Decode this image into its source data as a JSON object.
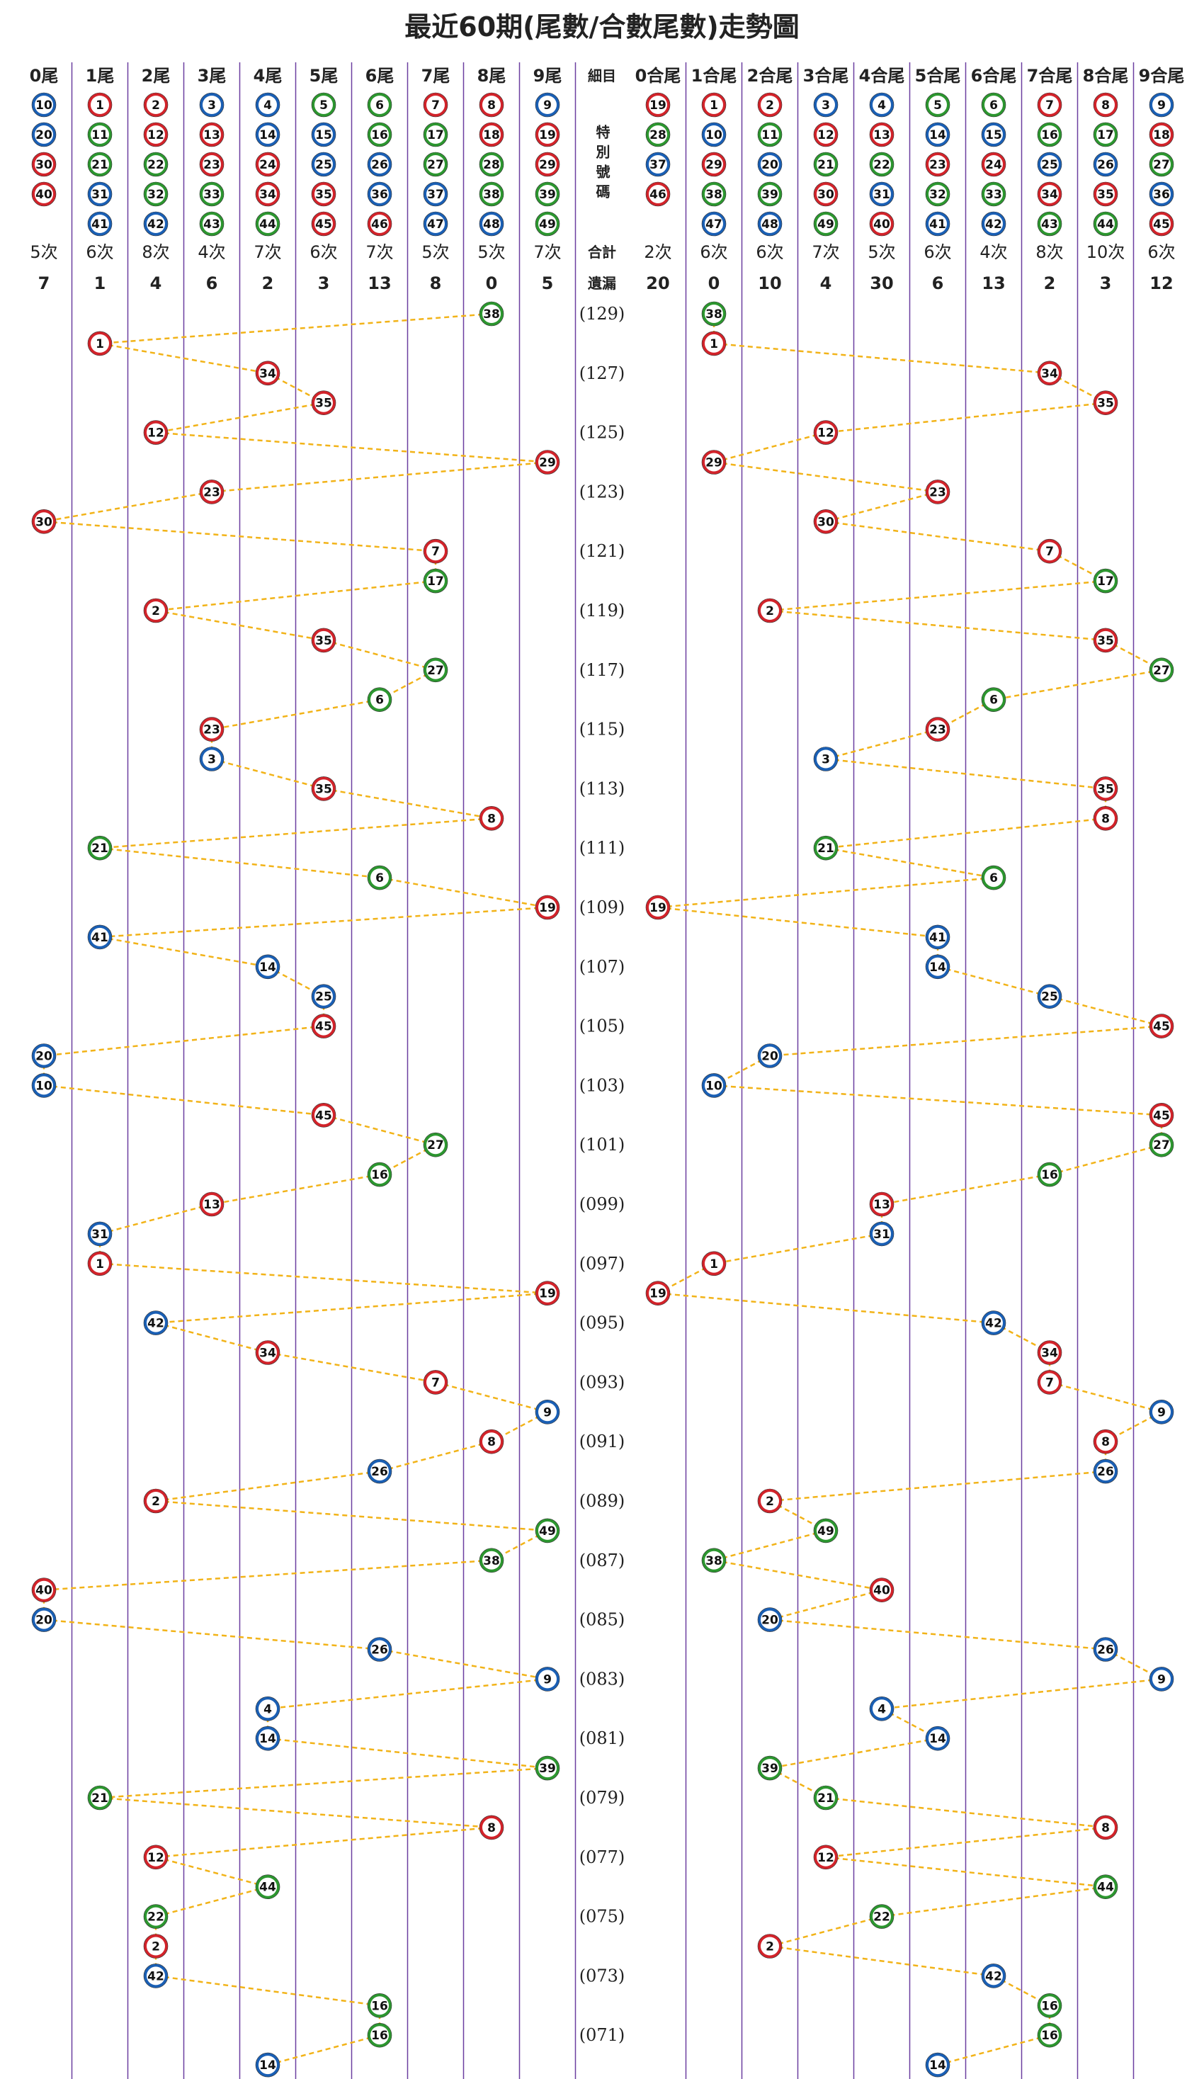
{
  "title": "最近60期(尾數/合數尾數)走勢圖",
  "middle": {
    "header": "細目",
    "special": "特別號碼",
    "total": "合計",
    "miss": "遺漏"
  },
  "colors": {
    "red": "#d2232a",
    "blue": "#1a5fb4",
    "green": "#2c962f",
    "line": "#f2b318",
    "divider": "#6b3fa0"
  },
  "tail_columns": [
    {
      "label": "0尾",
      "numbers": [
        {
          "n": "10",
          "color": "blue"
        },
        {
          "n": "20",
          "color": "blue"
        },
        {
          "n": "30",
          "color": "red"
        },
        {
          "n": "40",
          "color": "red"
        }
      ],
      "count": "5次",
      "miss": "7"
    },
    {
      "label": "1尾",
      "numbers": [
        {
          "n": "1",
          "color": "red"
        },
        {
          "n": "11",
          "color": "green"
        },
        {
          "n": "21",
          "color": "green"
        },
        {
          "n": "31",
          "color": "blue"
        },
        {
          "n": "41",
          "color": "blue"
        }
      ],
      "count": "6次",
      "miss": "1"
    },
    {
      "label": "2尾",
      "numbers": [
        {
          "n": "2",
          "color": "red"
        },
        {
          "n": "12",
          "color": "red"
        },
        {
          "n": "22",
          "color": "green"
        },
        {
          "n": "32",
          "color": "green"
        },
        {
          "n": "42",
          "color": "blue"
        }
      ],
      "count": "8次",
      "miss": "4"
    },
    {
      "label": "3尾",
      "numbers": [
        {
          "n": "3",
          "color": "blue"
        },
        {
          "n": "13",
          "color": "red"
        },
        {
          "n": "23",
          "color": "red"
        },
        {
          "n": "33",
          "color": "green"
        },
        {
          "n": "43",
          "color": "green"
        }
      ],
      "count": "4次",
      "miss": "6"
    },
    {
      "label": "4尾",
      "numbers": [
        {
          "n": "4",
          "color": "blue"
        },
        {
          "n": "14",
          "color": "blue"
        },
        {
          "n": "24",
          "color": "red"
        },
        {
          "n": "34",
          "color": "red"
        },
        {
          "n": "44",
          "color": "green"
        }
      ],
      "count": "7次",
      "miss": "2"
    },
    {
      "label": "5尾",
      "numbers": [
        {
          "n": "5",
          "color": "green"
        },
        {
          "n": "15",
          "color": "blue"
        },
        {
          "n": "25",
          "color": "blue"
        },
        {
          "n": "35",
          "color": "red"
        },
        {
          "n": "45",
          "color": "red"
        }
      ],
      "count": "6次",
      "miss": "3"
    },
    {
      "label": "6尾",
      "numbers": [
        {
          "n": "6",
          "color": "green"
        },
        {
          "n": "16",
          "color": "green"
        },
        {
          "n": "26",
          "color": "blue"
        },
        {
          "n": "36",
          "color": "blue"
        },
        {
          "n": "46",
          "color": "red"
        }
      ],
      "count": "7次",
      "miss": "13"
    },
    {
      "label": "7尾",
      "numbers": [
        {
          "n": "7",
          "color": "red"
        },
        {
          "n": "17",
          "color": "green"
        },
        {
          "n": "27",
          "color": "green"
        },
        {
          "n": "37",
          "color": "blue"
        },
        {
          "n": "47",
          "color": "blue"
        }
      ],
      "count": "5次",
      "miss": "8"
    },
    {
      "label": "8尾",
      "numbers": [
        {
          "n": "8",
          "color": "red"
        },
        {
          "n": "18",
          "color": "red"
        },
        {
          "n": "28",
          "color": "green"
        },
        {
          "n": "38",
          "color": "green"
        },
        {
          "n": "48",
          "color": "blue"
        }
      ],
      "count": "5次",
      "miss": "0"
    },
    {
      "label": "9尾",
      "numbers": [
        {
          "n": "9",
          "color": "blue"
        },
        {
          "n": "19",
          "color": "red"
        },
        {
          "n": "29",
          "color": "red"
        },
        {
          "n": "39",
          "color": "green"
        },
        {
          "n": "49",
          "color": "green"
        }
      ],
      "count": "7次",
      "miss": "5"
    }
  ],
  "sum_tail_columns": [
    {
      "label": "0合尾",
      "numbers": [
        {
          "n": "19",
          "color": "red"
        },
        {
          "n": "28",
          "color": "green"
        },
        {
          "n": "37",
          "color": "blue"
        },
        {
          "n": "46",
          "color": "red"
        }
      ],
      "count": "2次",
      "miss": "20"
    },
    {
      "label": "1合尾",
      "numbers": [
        {
          "n": "1",
          "color": "red"
        },
        {
          "n": "10",
          "color": "blue"
        },
        {
          "n": "29",
          "color": "red"
        },
        {
          "n": "38",
          "color": "green"
        },
        {
          "n": "47",
          "color": "blue"
        }
      ],
      "count": "6次",
      "miss": "0"
    },
    {
      "label": "2合尾",
      "numbers": [
        {
          "n": "2",
          "color": "red"
        },
        {
          "n": "11",
          "color": "green"
        },
        {
          "n": "20",
          "color": "blue"
        },
        {
          "n": "39",
          "color": "green"
        },
        {
          "n": "48",
          "color": "blue"
        }
      ],
      "count": "6次",
      "miss": "10"
    },
    {
      "label": "3合尾",
      "numbers": [
        {
          "n": "3",
          "color": "blue"
        },
        {
          "n": "12",
          "color": "red"
        },
        {
          "n": "21",
          "color": "green"
        },
        {
          "n": "30",
          "color": "red"
        },
        {
          "n": "49",
          "color": "green"
        }
      ],
      "count": "7次",
      "miss": "4"
    },
    {
      "label": "4合尾",
      "numbers": [
        {
          "n": "4",
          "color": "blue"
        },
        {
          "n": "13",
          "color": "red"
        },
        {
          "n": "22",
          "color": "green"
        },
        {
          "n": "31",
          "color": "blue"
        },
        {
          "n": "40",
          "color": "red"
        }
      ],
      "count": "5次",
      "miss": "30"
    },
    {
      "label": "5合尾",
      "numbers": [
        {
          "n": "5",
          "color": "green"
        },
        {
          "n": "14",
          "color": "blue"
        },
        {
          "n": "23",
          "color": "red"
        },
        {
          "n": "32",
          "color": "green"
        },
        {
          "n": "41",
          "color": "blue"
        }
      ],
      "count": "6次",
      "miss": "6"
    },
    {
      "label": "6合尾",
      "numbers": [
        {
          "n": "6",
          "color": "green"
        },
        {
          "n": "15",
          "color": "blue"
        },
        {
          "n": "24",
          "color": "red"
        },
        {
          "n": "33",
          "color": "green"
        },
        {
          "n": "42",
          "color": "blue"
        }
      ],
      "count": "4次",
      "miss": "13"
    },
    {
      "label": "7合尾",
      "numbers": [
        {
          "n": "7",
          "color": "red"
        },
        {
          "n": "16",
          "color": "green"
        },
        {
          "n": "25",
          "color": "blue"
        },
        {
          "n": "34",
          "color": "red"
        },
        {
          "n": "43",
          "color": "green"
        }
      ],
      "count": "8次",
      "miss": "2"
    },
    {
      "label": "8合尾",
      "numbers": [
        {
          "n": "8",
          "color": "red"
        },
        {
          "n": "17",
          "color": "green"
        },
        {
          "n": "26",
          "color": "blue"
        },
        {
          "n": "35",
          "color": "red"
        },
        {
          "n": "44",
          "color": "green"
        }
      ],
      "count": "10次",
      "miss": "3"
    },
    {
      "label": "9合尾",
      "numbers": [
        {
          "n": "9",
          "color": "blue"
        },
        {
          "n": "18",
          "color": "red"
        },
        {
          "n": "27",
          "color": "green"
        },
        {
          "n": "36",
          "color": "blue"
        },
        {
          "n": "45",
          "color": "red"
        }
      ],
      "count": "6次",
      "miss": "12"
    }
  ],
  "draws": [
    "38",
    "1",
    "34",
    "35",
    "12",
    "29",
    "23",
    "30",
    "7",
    "17",
    "2",
    "35",
    "27",
    "6",
    "23",
    "3",
    "35",
    "8",
    "21",
    "6",
    "19",
    "41",
    "14",
    "25",
    "45",
    "20",
    "10",
    "45",
    "27",
    "16",
    "13",
    "31",
    "1",
    "19",
    "42",
    "34",
    "7",
    "9",
    "8",
    "26",
    "2",
    "49",
    "38",
    "40",
    "20",
    "26",
    "9",
    "4",
    "14",
    "39",
    "21",
    "8",
    "12",
    "44",
    "22",
    "2",
    "42",
    "16",
    "16",
    "14"
  ],
  "period_labels": [
    "(129)",
    "(127)",
    "(125)",
    "(123)",
    "(121)",
    "(119)",
    "(117)",
    "(115)",
    "(113)",
    "(111)",
    "(109)",
    "(107)",
    "(105)",
    "(103)",
    "(101)",
    "(099)",
    "(097)",
    "(095)",
    "(093)",
    "(091)",
    "(089)",
    "(087)",
    "(085)",
    "(083)",
    "(081)",
    "(079)",
    "(077)",
    "(075)",
    "(073)",
    "(071)"
  ]
}
